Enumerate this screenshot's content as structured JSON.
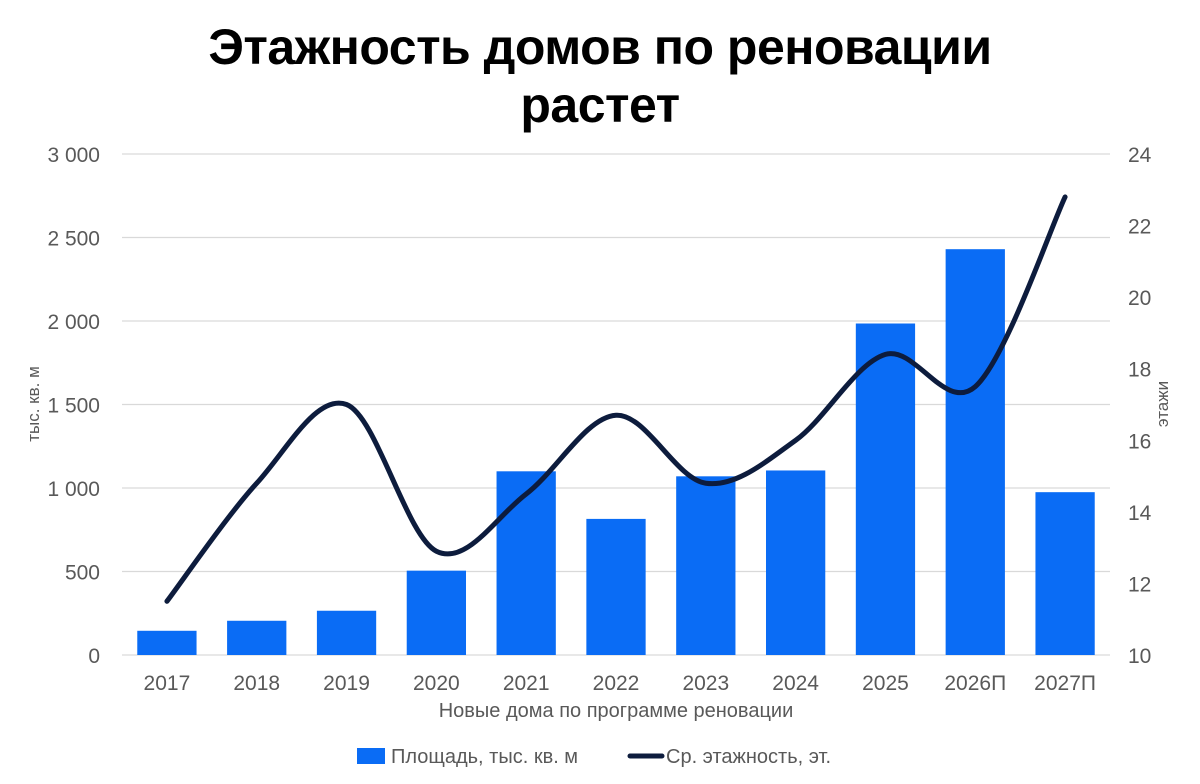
{
  "chart_data": {
    "type": "bar",
    "title_lines": [
      "Этажность домов по реновации",
      "растет"
    ],
    "xlabel": "Новые дома по программе реновации",
    "ylabel": "тыс. кв. м",
    "y2label": "этажи",
    "categories": [
      "2017",
      "2018",
      "2019",
      "2020",
      "2021",
      "2022",
      "2023",
      "2024",
      "2025",
      "2026П",
      "2027П"
    ],
    "ylim": [
      0,
      3000
    ],
    "y_ticks": [
      0,
      500,
      1000,
      1500,
      2000,
      2500,
      3000
    ],
    "y_tick_labels": [
      "0",
      "500",
      "1 000",
      "1 500",
      "2 000",
      "2 500",
      "3 000"
    ],
    "y2lim": [
      10,
      24
    ],
    "y2_ticks": [
      10,
      12,
      14,
      16,
      18,
      20,
      22,
      24
    ],
    "grid": true,
    "legend_position": "bottom",
    "series": [
      {
        "name": "Площадь, тыс. кв. м",
        "type": "bar",
        "axis": "left",
        "color": "#0a6cf5",
        "values": [
          145,
          205,
          265,
          505,
          1100,
          815,
          1070,
          1105,
          1985,
          2430,
          975
        ]
      },
      {
        "name": "Ср. этажность, эт.",
        "type": "line",
        "axis": "right",
        "color": "#0d1c3d",
        "smooth": true,
        "values": [
          11.5,
          14.8,
          17.0,
          12.9,
          14.5,
          16.7,
          14.8,
          16.0,
          18.4,
          17.5,
          22.8
        ]
      }
    ]
  }
}
